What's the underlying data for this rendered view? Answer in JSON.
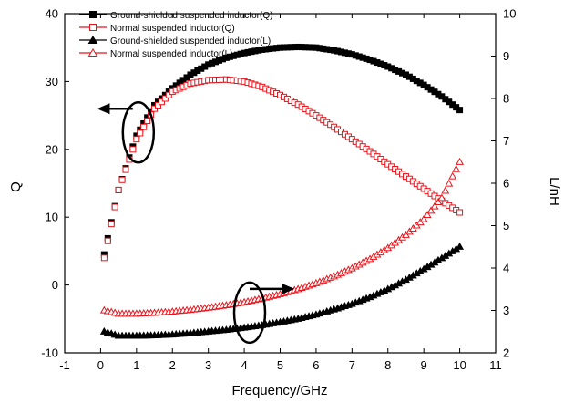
{
  "chart_data": {
    "type": "scatter",
    "xlabel": "Frequency/GHz",
    "ylabel_left": "Q",
    "ylabel_right": "L/nH",
    "xlim": [
      -1,
      11
    ],
    "ylim_left": [
      -10,
      40
    ],
    "ylim_right": [
      2,
      10
    ],
    "x_ticks": [
      "-1",
      "0",
      "1",
      "2",
      "3",
      "4",
      "5",
      "6",
      "7",
      "8",
      "9",
      "10",
      "11"
    ],
    "y_left_ticks": [
      "-10",
      "0",
      "10",
      "20",
      "30",
      "40"
    ],
    "y_right_ticks": [
      "2",
      "3",
      "4",
      "5",
      "6",
      "7",
      "8",
      "9",
      "10"
    ],
    "legend_position": "top-left",
    "series": [
      {
        "name": "Ground-shielded suspended inductor(Q)",
        "axis": "left",
        "marker": "square-filled",
        "color": "#000000",
        "x": [
          0.1,
          0.5,
          1,
          1.5,
          2,
          2.5,
          3,
          3.5,
          4,
          4.5,
          5,
          5.5,
          6,
          6.5,
          7,
          7.5,
          8,
          8.5,
          9,
          9.5,
          10
        ],
        "values": [
          4.5,
          14,
          22,
          26.5,
          29,
          31,
          32.5,
          33.5,
          34.2,
          34.7,
          35,
          35.1,
          35,
          34.6,
          34,
          33.2,
          32.2,
          31,
          29.5,
          27.8,
          25.8
        ]
      },
      {
        "name": "Normal suspended inductor(Q)",
        "axis": "left",
        "marker": "square-open",
        "color": "#e8141b",
        "x": [
          0.1,
          0.5,
          1,
          1.5,
          2,
          2.5,
          3,
          3.5,
          4,
          4.5,
          5,
          5.5,
          6,
          6.5,
          7,
          7.5,
          8,
          8.5,
          9,
          9.5,
          10
        ],
        "values": [
          4,
          14,
          21.5,
          26,
          28.5,
          29.7,
          30.2,
          30.3,
          30,
          29.2,
          28,
          26.6,
          25,
          23.3,
          21.5,
          19.7,
          17.8,
          16,
          14.2,
          12.4,
          10.7
        ]
      },
      {
        "name": "Ground-shielded suspended inductor(L)",
        "axis": "right",
        "marker": "triangle-filled",
        "color": "#000000",
        "x": [
          0.1,
          0.5,
          1,
          1.5,
          2,
          2.5,
          3,
          3.5,
          4,
          4.5,
          5,
          5.5,
          6,
          6.5,
          7,
          7.5,
          8,
          8.5,
          9,
          9.5,
          10
        ],
        "values": [
          2.5,
          2.4,
          2.4,
          2.41,
          2.43,
          2.46,
          2.5,
          2.54,
          2.59,
          2.65,
          2.72,
          2.8,
          2.9,
          3.02,
          3.15,
          3.31,
          3.5,
          3.72,
          3.97,
          4.23,
          4.5
        ]
      },
      {
        "name": "Normal suspended inductor(L)",
        "axis": "right",
        "marker": "triangle-open",
        "color": "#e8141b",
        "x": [
          0.1,
          0.5,
          1,
          1.5,
          2,
          2.5,
          3,
          3.5,
          4,
          4.5,
          5,
          5.5,
          6,
          6.5,
          7,
          7.5,
          8,
          8.5,
          9,
          9.5,
          10
        ],
        "values": [
          3.0,
          2.92,
          2.92,
          2.94,
          2.97,
          3.01,
          3.06,
          3.12,
          3.19,
          3.28,
          3.38,
          3.5,
          3.64,
          3.8,
          3.99,
          4.21,
          4.47,
          4.78,
          5.15,
          5.65,
          6.5
        ]
      }
    ],
    "annotations": [
      {
        "kind": "ellipse-arrow-left",
        "x": 1.05,
        "y_left": 22.5,
        "arrow_to_x": -0.1
      },
      {
        "kind": "ellipse-arrow-right",
        "x": 4.15,
        "y_right": 2.95,
        "arrow_to_x": 5.4
      }
    ]
  }
}
